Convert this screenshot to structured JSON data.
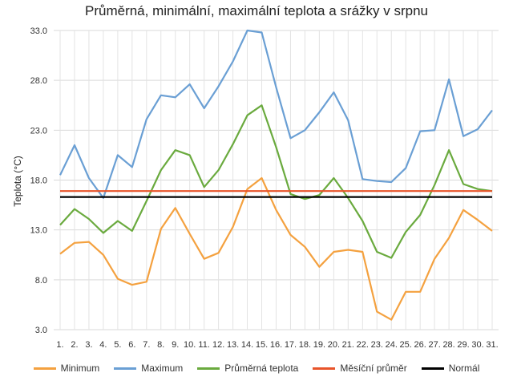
{
  "chart_data": {
    "type": "line",
    "title": "Průměrná, minimální, maximální teplota a srážky v srpnu",
    "ylabel": "Teplota (°C)",
    "xlabel": "",
    "categories": [
      "1.",
      "2.",
      "3.",
      "4.",
      "5.",
      "6.",
      "7.",
      "8.",
      "9.",
      "10.",
      "11.",
      "12.",
      "13.",
      "14.",
      "15.",
      "16.",
      "17.",
      "18.",
      "19.",
      "20.",
      "21.",
      "22.",
      "23.",
      "24.",
      "25.",
      "26.",
      "27.",
      "28.",
      "29.",
      "30.",
      "31."
    ],
    "ylim": [
      3.0,
      33.0
    ],
    "yticks": [
      "3.0",
      "8.0",
      "13.0",
      "18.0",
      "23.0",
      "28.0",
      "33.0"
    ],
    "grid": true,
    "legend_position": "bottom",
    "series": [
      {
        "name": "Minimum",
        "color": "#f4a13f",
        "values": [
          10.6,
          11.7,
          11.8,
          10.5,
          8.1,
          7.5,
          7.8,
          13.1,
          15.2,
          12.6,
          10.1,
          10.7,
          13.3,
          17.1,
          18.2,
          15.0,
          12.5,
          11.3,
          9.3,
          10.8,
          11.0,
          10.8,
          4.8,
          4.0,
          6.8,
          6.8,
          10.1,
          12.2,
          15.0,
          14.0,
          12.9
        ]
      },
      {
        "name": "Maximum",
        "color": "#6a9fd4",
        "values": [
          18.5,
          21.5,
          18.2,
          16.2,
          20.5,
          19.3,
          24.1,
          26.5,
          26.3,
          27.6,
          25.2,
          27.4,
          29.9,
          33.0,
          32.8,
          27.3,
          22.2,
          23.0,
          24.8,
          26.8,
          24.0,
          18.1,
          17.9,
          17.8,
          19.2,
          22.9,
          23.0,
          28.1,
          22.4,
          23.1,
          25.0
        ]
      },
      {
        "name": "Průměrná teplota",
        "color": "#6aaa3e",
        "values": [
          13.5,
          15.1,
          14.1,
          12.7,
          13.9,
          12.9,
          15.9,
          19.0,
          21.0,
          20.5,
          17.3,
          19.0,
          21.6,
          24.5,
          25.5,
          21.3,
          16.6,
          16.1,
          16.5,
          18.2,
          16.2,
          13.9,
          10.8,
          10.2,
          12.8,
          14.5,
          17.5,
          21.0,
          17.6,
          17.1,
          16.9
        ]
      },
      {
        "name": "Měsíční průměr",
        "color": "#e8542a",
        "values": [
          16.9,
          16.9,
          16.9,
          16.9,
          16.9,
          16.9,
          16.9,
          16.9,
          16.9,
          16.9,
          16.9,
          16.9,
          16.9,
          16.9,
          16.9,
          16.9,
          16.9,
          16.9,
          16.9,
          16.9,
          16.9,
          16.9,
          16.9,
          16.9,
          16.9,
          16.9,
          16.9,
          16.9,
          16.9,
          16.9,
          16.9
        ]
      },
      {
        "name": "Normál",
        "color": "#000000",
        "values": [
          16.3,
          16.3,
          16.3,
          16.3,
          16.3,
          16.3,
          16.3,
          16.3,
          16.3,
          16.3,
          16.3,
          16.3,
          16.3,
          16.3,
          16.3,
          16.3,
          16.3,
          16.3,
          16.3,
          16.3,
          16.3,
          16.3,
          16.3,
          16.3,
          16.3,
          16.3,
          16.3,
          16.3,
          16.3,
          16.3,
          16.3
        ]
      }
    ]
  }
}
